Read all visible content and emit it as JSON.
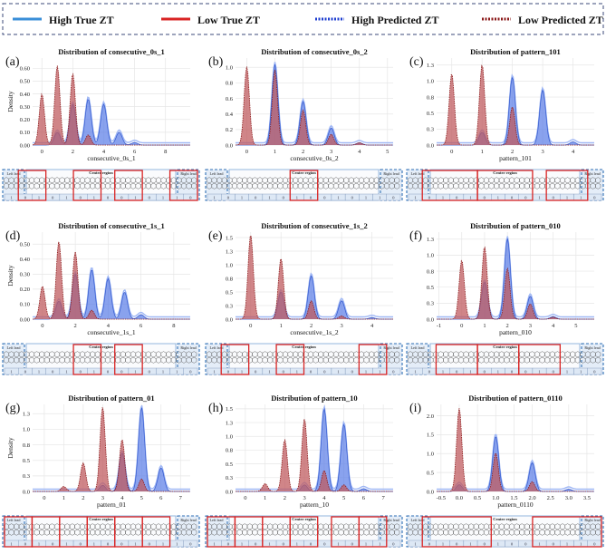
{
  "legend": [
    {
      "label": "High True ZT",
      "style": "solid",
      "color": "#3a8fd8"
    },
    {
      "label": "Low True ZT",
      "style": "solid",
      "color": "#d92424"
    },
    {
      "label": "High Predicted ZT",
      "style": "dotted",
      "color": "#1f3fd0"
    },
    {
      "label": "Low Predicted ZT",
      "style": "dotted",
      "color": "#8b1a1a"
    }
  ],
  "colors": {
    "high_fill": "#5c7ee8",
    "low_fill": "#c05a5e",
    "overlap": "#6e4f9e",
    "frame": "#2f6fb5",
    "region": "#d92424"
  },
  "chart_data": [
    {
      "type": "area",
      "panel": "(a)",
      "title": "Distribution of consecutive_0s_1",
      "xlabel": "consecutive_0s_1",
      "ylabel": "Density",
      "xlim": [
        -0.6,
        9.6
      ],
      "ylim": [
        0,
        0.68
      ],
      "xticks": [
        0,
        2,
        4,
        6,
        8
      ],
      "yticks": [
        0.0,
        0.1,
        0.2,
        0.3,
        0.4,
        0.5,
        0.6
      ],
      "high": [
        [
          1,
          0.1
        ],
        [
          2,
          0.32
        ],
        [
          3,
          0.36
        ],
        [
          4,
          0.32
        ],
        [
          5,
          0.1
        ],
        [
          6,
          0.02
        ]
      ],
      "low": [
        [
          0,
          0.4
        ],
        [
          1,
          0.62
        ],
        [
          2,
          0.56
        ],
        [
          3,
          0.08
        ]
      ],
      "strip": {
        "left": "Left lead",
        "center": "Center region",
        "right": "Right lead",
        "bits": [
          "1",
          "0",
          "1",
          "0",
          "1",
          "0",
          "1",
          "0",
          "0",
          "1",
          "0",
          "1",
          "1",
          "0"
        ],
        "boxes": [
          [
            1,
            2
          ],
          [
            5,
            6
          ],
          [
            8,
            9
          ],
          [
            12,
            13
          ]
        ]
      }
    },
    {
      "type": "area",
      "panel": "(b)",
      "title": "Distribution of consecutive_0s_2",
      "xlabel": "consecutive_0s_2",
      "ylabel": "",
      "xlim": [
        -0.4,
        5.2
      ],
      "ylim": [
        0,
        1.12
      ],
      "xticks": [
        0,
        1,
        2,
        3,
        4,
        5
      ],
      "yticks": [
        0.0,
        0.2,
        0.4,
        0.6,
        0.8,
        1.0
      ],
      "high": [
        [
          1,
          1.04
        ],
        [
          2,
          0.56
        ],
        [
          3,
          0.22
        ],
        [
          4,
          0.03
        ]
      ],
      "low": [
        [
          0,
          1.01
        ],
        [
          1,
          0.97
        ],
        [
          2,
          0.45
        ],
        [
          3,
          0.14
        ],
        [
          4,
          0.03
        ]
      ],
      "strip": {
        "left": "Left lead",
        "center": "Center region",
        "right": "Right lead",
        "bits": [
          "1",
          "0",
          "1",
          "0",
          "1",
          "0",
          "1",
          "0",
          "0",
          "1",
          "0",
          "1",
          "1",
          "0"
        ],
        "boxes": [
          [
            6,
            7
          ]
        ]
      }
    },
    {
      "type": "area",
      "panel": "(c)",
      "title": "Distribution of pattern_101",
      "xlabel": "pattern_101",
      "ylabel": "",
      "xlim": [
        -0.5,
        4.7
      ],
      "ylim": [
        0,
        1.36
      ],
      "xticks": [
        0,
        1,
        2,
        3,
        4
      ],
      "yticks": [
        0.0,
        0.25,
        0.5,
        0.75,
        1.0,
        1.25
      ],
      "high": [
        [
          1,
          0.2
        ],
        [
          2,
          1.06
        ],
        [
          3,
          0.86
        ],
        [
          4,
          0.05
        ]
      ],
      "low": [
        [
          0,
          1.12
        ],
        [
          1,
          1.26
        ],
        [
          2,
          0.6
        ]
      ],
      "strip": {
        "left": "Left lead",
        "center": "Center region",
        "right": "Right lead",
        "bits": [
          "1",
          "0",
          "1",
          "0",
          "1",
          "0",
          "1",
          "0",
          "0",
          "1",
          "0",
          "1",
          "1",
          "0"
        ],
        "boxes": [
          [
            1,
            4
          ],
          [
            5,
            8
          ],
          [
            10,
            12
          ]
        ]
      }
    },
    {
      "type": "area",
      "panel": "(d)",
      "title": "Distribution of consecutive_1s_1",
      "xlabel": "consecutive_1s_1",
      "ylabel": "Density",
      "xlim": [
        -0.6,
        9.0
      ],
      "ylim": [
        0,
        0.58
      ],
      "xticks": [
        0,
        2,
        4,
        6,
        8
      ],
      "yticks": [
        0.0,
        0.1,
        0.2,
        0.3,
        0.4,
        0.5
      ],
      "high": [
        [
          1,
          0.12
        ],
        [
          2,
          0.3
        ],
        [
          3,
          0.33
        ],
        [
          4,
          0.27
        ],
        [
          5,
          0.18
        ],
        [
          6,
          0.03
        ]
      ],
      "low": [
        [
          0,
          0.22
        ],
        [
          1,
          0.52
        ],
        [
          2,
          0.45
        ],
        [
          3,
          0.06
        ]
      ],
      "strip": {
        "left": "Left lead",
        "center": "Center region",
        "right": "Right lead",
        "bits": [
          "1",
          "0",
          "1",
          "0",
          "1",
          "0",
          "1",
          "0",
          "0",
          "1",
          "0",
          "1",
          "1",
          "0"
        ],
        "boxes": [
          [
            5,
            6
          ],
          [
            8,
            9
          ]
        ]
      }
    },
    {
      "type": "area",
      "panel": "(e)",
      "title": "Distribution of consecutive_1s_2",
      "xlabel": "consecutive_1s_2",
      "ylabel": "",
      "xlim": [
        -0.5,
        4.7
      ],
      "ylim": [
        0,
        1.6
      ],
      "xticks": [
        0,
        1,
        2,
        3,
        4
      ],
      "yticks": [
        0.0,
        0.25,
        0.5,
        0.75,
        1.0,
        1.25,
        1.5
      ],
      "high": [
        [
          1,
          0.5
        ],
        [
          2,
          0.8
        ],
        [
          3,
          0.34
        ],
        [
          4,
          0.03
        ]
      ],
      "low": [
        [
          0,
          1.56
        ],
        [
          1,
          1.12
        ],
        [
          2,
          0.34
        ],
        [
          3,
          0.06
        ]
      ],
      "strip": {
        "left": "Left lead",
        "center": "Center region",
        "right": "Right lead",
        "bits": [
          "1",
          "0",
          "1",
          "0",
          "1",
          "0",
          "1",
          "0",
          "0",
          "1",
          "0",
          "1",
          "1",
          "0"
        ],
        "boxes": [
          [
            1,
            2
          ],
          [
            5,
            6
          ],
          [
            11,
            12
          ]
        ]
      }
    },
    {
      "type": "area",
      "panel": "(f)",
      "title": "Distribution of pattern_010",
      "xlabel": "pattern_010",
      "ylabel": "",
      "xlim": [
        -1.1,
        5.8
      ],
      "ylim": [
        0,
        1.36
      ],
      "xticks": [
        -1,
        0,
        1,
        2,
        3,
        4,
        5
      ],
      "yticks": [
        0.0,
        0.25,
        0.5,
        0.75,
        1.0,
        1.25
      ],
      "high": [
        [
          1,
          0.58
        ],
        [
          2,
          1.26
        ],
        [
          3,
          0.36
        ],
        [
          4,
          0.04
        ]
      ],
      "low": [
        [
          0,
          0.92
        ],
        [
          1,
          1.14
        ],
        [
          2,
          0.8
        ],
        [
          3,
          0.24
        ],
        [
          4,
          0.03
        ]
      ],
      "strip": {
        "left": "Left lead",
        "center": "Center region",
        "right": "Right lead",
        "bits": [
          "1",
          "0",
          "1",
          "0",
          "1",
          "0",
          "1",
          "0",
          "0",
          "1",
          "0",
          "1",
          "1",
          "0"
        ],
        "boxes": [
          [
            2,
            4
          ],
          [
            5,
            7
          ],
          [
            8,
            10
          ]
        ]
      }
    },
    {
      "type": "area",
      "panel": "(g)",
      "title": "Distribution of pattern_01",
      "xlabel": "pattern_01",
      "ylabel": "Density",
      "xlim": [
        -0.6,
        7.5
      ],
      "ylim": [
        0,
        1.4
      ],
      "xticks": [
        0,
        1,
        2,
        3,
        4,
        5,
        6,
        7
      ],
      "yticks": [
        0.0,
        0.25,
        0.5,
        0.75,
        1.0,
        1.25
      ],
      "high": [
        [
          3,
          0.1
        ],
        [
          4,
          0.62
        ],
        [
          5,
          1.35
        ],
        [
          6,
          0.38
        ]
      ],
      "low": [
        [
          1,
          0.08
        ],
        [
          2,
          0.46
        ],
        [
          3,
          1.36
        ],
        [
          4,
          0.84
        ],
        [
          5,
          0.2
        ]
      ],
      "strip": {
        "left": "Left lead",
        "center": "Center region",
        "right": "Right lead",
        "bits": [
          "1",
          "0",
          "1",
          "0",
          "1",
          "0",
          "1",
          "0",
          "0",
          "1",
          "0",
          "1",
          "1",
          "0"
        ],
        "boxes": [
          [
            0,
            1
          ],
          [
            2,
            3
          ],
          [
            4,
            5
          ],
          [
            6,
            7
          ],
          [
            8,
            9
          ],
          [
            10,
            11
          ]
        ]
      }
    },
    {
      "type": "area",
      "panel": "(h)",
      "title": "Distribution of pattern_10",
      "xlabel": "pattern_10",
      "ylabel": "",
      "xlim": [
        -0.5,
        7.5
      ],
      "ylim": [
        0,
        1.58
      ],
      "xticks": [
        0,
        1,
        2,
        3,
        4,
        5,
        6,
        7
      ],
      "yticks": [
        0.0,
        0.25,
        0.5,
        0.75,
        1.0,
        1.25,
        1.5
      ],
      "high": [
        [
          3,
          0.12
        ],
        [
          4,
          1.5
        ],
        [
          5,
          1.22
        ],
        [
          6,
          0.05
        ]
      ],
      "low": [
        [
          1,
          0.14
        ],
        [
          2,
          0.94
        ],
        [
          3,
          1.32
        ],
        [
          4,
          0.38
        ],
        [
          5,
          0.12
        ]
      ],
      "strip": {
        "left": "Left lead",
        "center": "Center region",
        "right": "Right lead",
        "bits": [
          "1",
          "0",
          "1",
          "0",
          "1",
          "0",
          "1",
          "0",
          "0",
          "1",
          "0",
          "1",
          "1",
          "0"
        ],
        "boxes": [
          [
            0,
            1
          ],
          [
            2,
            3
          ],
          [
            4,
            5
          ],
          [
            6,
            7
          ],
          [
            9,
            10
          ],
          [
            11,
            12
          ]
        ]
      }
    },
    {
      "type": "area",
      "panel": "(i)",
      "title": "Distribution of pattern_0110",
      "xlabel": "pattern_0110",
      "ylabel": "",
      "xlim": [
        -0.62,
        3.7
      ],
      "ylim": [
        0,
        2.3
      ],
      "xticks": [
        -0.5,
        0.0,
        0.5,
        1.0,
        1.5,
        2.0,
        2.5,
        3.0,
        3.5
      ],
      "yticks": [
        0.0,
        0.5,
        1.0,
        1.5,
        2.0
      ],
      "high": [
        [
          0,
          0.18
        ],
        [
          1,
          1.46
        ],
        [
          2,
          0.76
        ],
        [
          3,
          0.06
        ]
      ],
      "low": [
        [
          0,
          2.2
        ],
        [
          1,
          1.02
        ],
        [
          2,
          0.26
        ]
      ],
      "strip": {
        "left": "Left lead",
        "center": "Center region",
        "right": "Right lead",
        "bits": [
          "1",
          "0",
          "1",
          "0",
          "1",
          "0",
          "1",
          "0",
          "0",
          "1",
          "0",
          "1",
          "1",
          "0"
        ],
        "boxes": [
          [
            1,
            5
          ],
          [
            9,
            13
          ]
        ]
      }
    }
  ]
}
